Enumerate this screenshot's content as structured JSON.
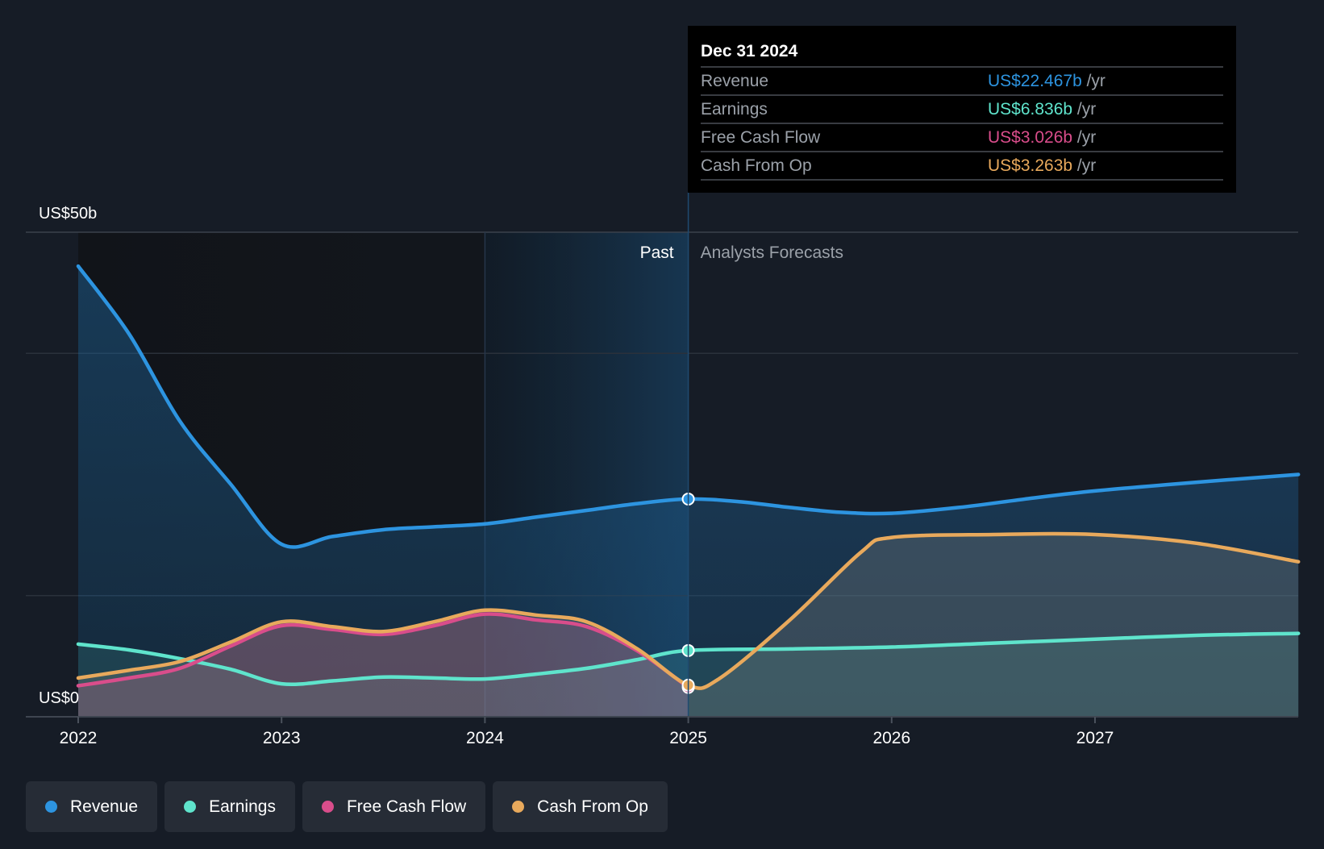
{
  "chart_data": {
    "type": "area",
    "y_axis": {
      "min": 0,
      "max": 50,
      "top_label": "US$50b",
      "bottom_label": "US$0"
    },
    "x_axis": {
      "min": 2022,
      "max": 2028,
      "ticks": [
        "2022",
        "2023",
        "2024",
        "2025",
        "2026",
        "2027"
      ]
    },
    "regions": {
      "past_label": "Past",
      "forecast_label": "Analysts Forecasts",
      "divider_x": 2025.0
    },
    "highlight_band": [
      2024.0,
      2025.0
    ],
    "series": [
      {
        "name": "Revenue",
        "color": "#2d94e0",
        "points": [
          [
            2022.0,
            46.5
          ],
          [
            2022.25,
            39.5
          ],
          [
            2022.5,
            30.5
          ],
          [
            2022.75,
            24.0
          ],
          [
            2023.0,
            17.8
          ],
          [
            2023.25,
            18.6
          ],
          [
            2023.5,
            19.3
          ],
          [
            2023.75,
            19.6
          ],
          [
            2024.0,
            19.9
          ],
          [
            2024.25,
            20.6
          ],
          [
            2024.5,
            21.3
          ],
          [
            2024.75,
            22.0
          ],
          [
            2025.0,
            22.467
          ],
          [
            2025.25,
            22.2
          ],
          [
            2025.5,
            21.6
          ],
          [
            2025.75,
            21.1
          ],
          [
            2026.0,
            21.0
          ],
          [
            2026.33,
            21.6
          ],
          [
            2026.67,
            22.5
          ],
          [
            2027.0,
            23.3
          ],
          [
            2027.5,
            24.2
          ],
          [
            2028.0,
            25.0
          ]
        ]
      },
      {
        "name": "Earnings",
        "color": "#5fe4cc",
        "points": [
          [
            2022.0,
            7.5
          ],
          [
            2022.25,
            6.9
          ],
          [
            2022.5,
            6.0
          ],
          [
            2022.75,
            4.9
          ],
          [
            2023.0,
            3.4
          ],
          [
            2023.25,
            3.7
          ],
          [
            2023.5,
            4.1
          ],
          [
            2023.75,
            4.0
          ],
          [
            2024.0,
            3.9
          ],
          [
            2024.25,
            4.4
          ],
          [
            2024.5,
            5.0
          ],
          [
            2024.75,
            5.9
          ],
          [
            2025.0,
            6.836
          ],
          [
            2025.5,
            7.0
          ],
          [
            2026.0,
            7.2
          ],
          [
            2026.5,
            7.6
          ],
          [
            2027.0,
            8.0
          ],
          [
            2027.5,
            8.4
          ],
          [
            2028.0,
            8.6
          ]
        ]
      },
      {
        "name": "Free Cash Flow",
        "color": "#d94d8b",
        "points": [
          [
            2022.0,
            3.2
          ],
          [
            2022.25,
            4.0
          ],
          [
            2022.5,
            5.0
          ],
          [
            2022.75,
            7.3
          ],
          [
            2023.0,
            9.4
          ],
          [
            2023.25,
            9.0
          ],
          [
            2023.5,
            8.5
          ],
          [
            2023.75,
            9.4
          ],
          [
            2024.0,
            10.6
          ],
          [
            2024.25,
            10.0
          ],
          [
            2024.5,
            9.3
          ],
          [
            2024.75,
            6.8
          ],
          [
            2025.0,
            3.026
          ]
        ]
      },
      {
        "name": "Cash From Op",
        "color": "#e8a95c",
        "points": [
          [
            2022.0,
            4.0
          ],
          [
            2022.25,
            4.8
          ],
          [
            2022.5,
            5.7
          ],
          [
            2022.75,
            7.7
          ],
          [
            2023.0,
            9.8
          ],
          [
            2023.25,
            9.3
          ],
          [
            2023.5,
            8.8
          ],
          [
            2023.75,
            9.8
          ],
          [
            2024.0,
            11.0
          ],
          [
            2024.25,
            10.5
          ],
          [
            2024.5,
            9.8
          ],
          [
            2024.75,
            7.0
          ],
          [
            2025.0,
            3.263
          ],
          [
            2025.15,
            3.9
          ],
          [
            2025.5,
            10.0
          ],
          [
            2025.85,
            17.0
          ],
          [
            2026.0,
            18.5
          ],
          [
            2026.5,
            18.8
          ],
          [
            2027.0,
            18.8
          ],
          [
            2027.5,
            17.9
          ],
          [
            2028.0,
            16.0
          ]
        ]
      }
    ],
    "tooltip": {
      "date": "Dec 31 2024",
      "suffix": "/yr",
      "rows": [
        {
          "label": "Revenue",
          "value": "US$22.467b",
          "color": "#2d94e0"
        },
        {
          "label": "Earnings",
          "value": "US$6.836b",
          "color": "#5fe4cc"
        },
        {
          "label": "Free Cash Flow",
          "value": "US$3.026b",
          "color": "#d94d8b"
        },
        {
          "label": "Cash From Op",
          "value": "US$3.263b",
          "color": "#e8a95c"
        }
      ]
    },
    "legend": [
      {
        "label": "Revenue",
        "color": "#2d94e0"
      },
      {
        "label": "Earnings",
        "color": "#5fe4cc"
      },
      {
        "label": "Free Cash Flow",
        "color": "#d94d8b"
      },
      {
        "label": "Cash From Op",
        "color": "#e8a95c"
      }
    ]
  }
}
